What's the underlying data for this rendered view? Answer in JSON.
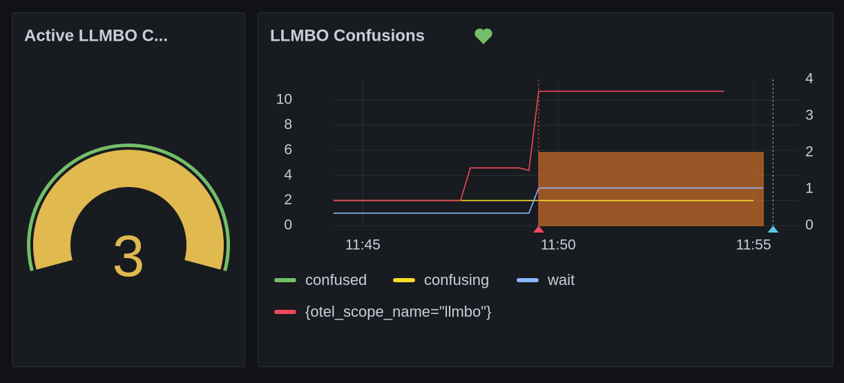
{
  "gauge_panel": {
    "title": "Active LLMBO C...",
    "value": 3,
    "color": "#e0b94f",
    "threshold_color": "#73bf69"
  },
  "chart_panel": {
    "title": "LLMBO Confusions",
    "chart_data": {
      "type": "line",
      "xlim": [
        "11:44:15",
        "11:56:10"
      ],
      "xticks": [
        "11:45",
        "11:50",
        "11:55"
      ],
      "ylim": [
        0,
        11.65
      ],
      "yticks": [
        0,
        2,
        4,
        6,
        8,
        10
      ],
      "y2lim": [
        0,
        4
      ],
      "y2ticks": [
        0,
        1,
        2,
        3,
        4
      ],
      "grid": true,
      "series": [
        {
          "name": "confused",
          "color": "#73bf69",
          "x": [],
          "values": []
        },
        {
          "name": "confusing",
          "color": "#fade2a",
          "x": [
            "11:44:15",
            "11:55:00"
          ],
          "values": [
            2,
            2
          ]
        },
        {
          "name": "wait",
          "color": "#8ab8ff",
          "x": [
            "11:44:15",
            "11:49:15",
            "11:49:30",
            "11:55:15"
          ],
          "values": [
            1,
            1,
            3,
            3
          ]
        },
        {
          "name": "{otel_scope_name=\"llmbo\"}",
          "color": "#f2495c",
          "x": [
            "11:44:15",
            "11:47:30",
            "11:47:45",
            "11:49:00",
            "11:49:15",
            "11:49:30",
            "11:54:15"
          ],
          "values": [
            2,
            2,
            4.6,
            4.6,
            4.4,
            10.7,
            10.7
          ]
        }
      ],
      "fill_region": {
        "x": [
          "11:49:30",
          "11:55:15"
        ],
        "value": 2,
        "axis": "y2",
        "color": "#c4692a"
      },
      "annotations": [
        {
          "time": "11:49:30",
          "color": "#f2495c"
        },
        {
          "time": "11:55:30",
          "color": "#5bc8e8"
        }
      ]
    }
  }
}
